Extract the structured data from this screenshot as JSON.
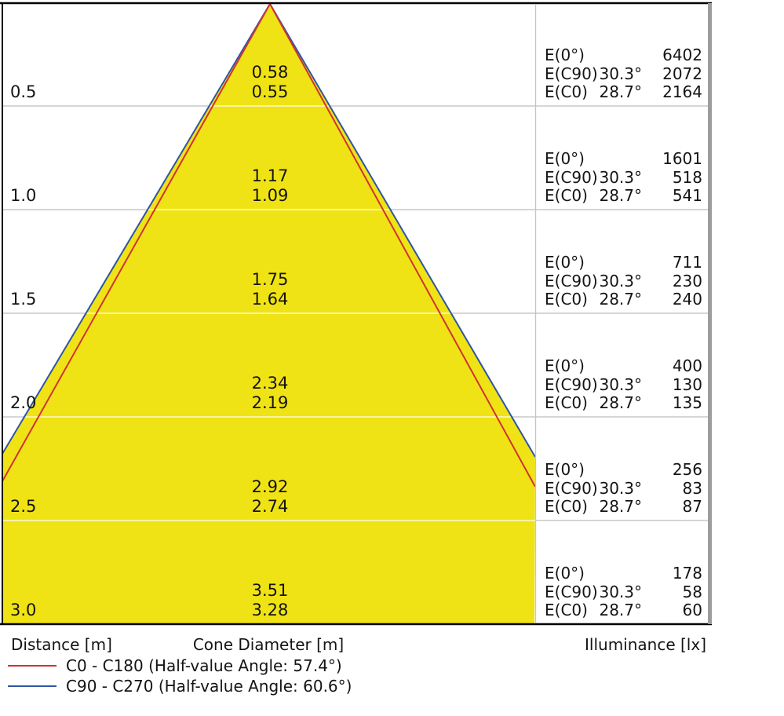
{
  "chart_data": {
    "type": "area",
    "subtype": "light_cone_diagram",
    "footer_columns": {
      "distance": "Distance [m]",
      "cone_diameter": "Cone Diameter [m]",
      "illuminance": "Illuminance [lx]"
    },
    "measure_labels": {
      "e0": "E(0°)",
      "ec90": "E(C90)",
      "ec0": "E(C0)"
    },
    "rows": [
      {
        "distance": "0.5",
        "cone_diameter_c90": "0.58",
        "cone_diameter_c0": "0.55",
        "e0": "6402",
        "ec90_angle": "30.3°",
        "ec90": "2072",
        "ec0_angle": "28.7°",
        "ec0": "2164"
      },
      {
        "distance": "1.0",
        "cone_diameter_c90": "1.17",
        "cone_diameter_c0": "1.09",
        "e0": "1601",
        "ec90_angle": "30.3°",
        "ec90": "518",
        "ec0_angle": "28.7°",
        "ec0": "541"
      },
      {
        "distance": "1.5",
        "cone_diameter_c90": "1.75",
        "cone_diameter_c0": "1.64",
        "e0": "711",
        "ec90_angle": "30.3°",
        "ec90": "230",
        "ec0_angle": "28.7°",
        "ec0": "240"
      },
      {
        "distance": "2.0",
        "cone_diameter_c90": "2.34",
        "cone_diameter_c0": "2.19",
        "e0": "400",
        "ec90_angle": "30.3°",
        "ec90": "130",
        "ec0_angle": "28.7°",
        "ec0": "135"
      },
      {
        "distance": "2.5",
        "cone_diameter_c90": "2.92",
        "cone_diameter_c0": "2.74",
        "e0": "256",
        "ec90_angle": "30.3°",
        "ec90": "83",
        "ec0_angle": "28.7°",
        "ec0": "87"
      },
      {
        "distance": "3.0",
        "cone_diameter_c90": "3.51",
        "cone_diameter_c0": "3.28",
        "e0": "178",
        "ec90_angle": "30.3°",
        "ec90": "58",
        "ec0_angle": "28.7°",
        "ec0": "60"
      }
    ],
    "legend": [
      {
        "series": "C0 - C180",
        "label": "C0 - C180 (Half-value Angle: 57.4°)",
        "color": "#cf3333"
      },
      {
        "series": "C90 - C270",
        "label": "C90 - C270 (Half-value Angle: 60.6°)",
        "color": "#2f55a4"
      }
    ],
    "half_value_angles": {
      "c0_c180": "57.4°",
      "c90_c270": "60.6°"
    },
    "colors": {
      "cone_fill": "#f0e315",
      "grid": "#c8c8c8",
      "grid_on_fill": "rgba(255,255,255,0.8)",
      "border": "#000000",
      "right_bar": "#9c9c9c",
      "divider": "#c4c4c4"
    },
    "axis": {
      "distances_m": [
        0.5,
        1.0,
        1.5,
        2.0,
        2.5,
        3.0
      ],
      "grid": "on",
      "legend_position": "bottom-left"
    }
  }
}
